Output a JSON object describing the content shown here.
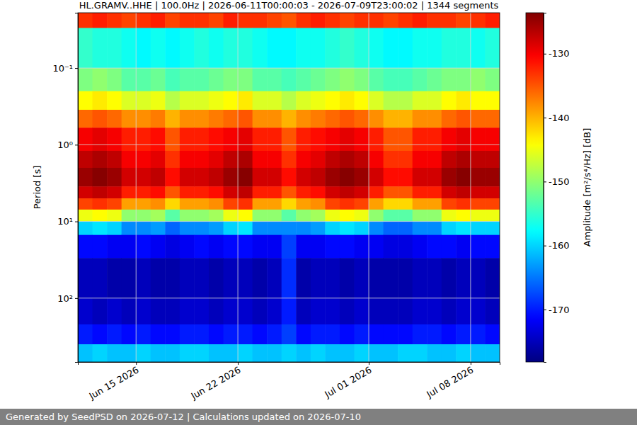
{
  "chart_data": {
    "type": "heatmap",
    "title": "HL.GRAMV..HHE | 100.0Hz | 2026-06-11T00:00:03 - 2026-07-09T23:00:02 | 1344 segments",
    "y_label": "Period [s]",
    "footer": "Generated by SeedPSD on 2026-07-12 | Calculations updated on 2026-07-10",
    "log": "y",
    "grid": true,
    "xlim": [
      "2026-06-11",
      "2026-07-10"
    ],
    "xticks": [
      {
        "value": "2026-06-15",
        "label": "Jun 15 2026"
      },
      {
        "value": "2026-06-22",
        "label": "Jun 22 2026"
      },
      {
        "value": "2026-07-01",
        "label": "Jul 01 2026"
      },
      {
        "value": "2026-07-08",
        "label": "Jul 08 2026"
      }
    ],
    "ylim": [
      0.019,
      680
    ],
    "yticks": [
      {
        "value": 0.1,
        "label": "10⁻¹"
      },
      {
        "value": 1,
        "label": "10⁰"
      },
      {
        "value": 10,
        "label": "10¹"
      },
      {
        "value": 100,
        "label": "10²"
      }
    ],
    "x": [
      "2026-06-11",
      "2026-06-12",
      "2026-06-13",
      "2026-06-14",
      "2026-06-15",
      "2026-06-16",
      "2026-06-17",
      "2026-06-18",
      "2026-06-19",
      "2026-06-20",
      "2026-06-21",
      "2026-06-22",
      "2026-06-23",
      "2026-06-24",
      "2026-06-25",
      "2026-06-26",
      "2026-06-27",
      "2026-06-28",
      "2026-06-29",
      "2026-06-30",
      "2026-07-01",
      "2026-07-02",
      "2026-07-03",
      "2026-07-04",
      "2026-07-05",
      "2026-07-06",
      "2026-07-07",
      "2026-07-08",
      "2026-07-09",
      "2026-07-10"
    ],
    "y": [
      0.019,
      0.03,
      0.1,
      0.2,
      0.35,
      0.6,
      1.2,
      2,
      3.5,
      5,
      7,
      10,
      15,
      30,
      100,
      220,
      400,
      680
    ],
    "z": [
      [
        -133,
        -132,
        -133,
        -134,
        -133,
        -132,
        -134,
        -133,
        -133,
        -134,
        -132,
        -133,
        -133,
        -134,
        -135,
        -133,
        -132,
        -133,
        -134,
        -133,
        -133,
        -134,
        -133,
        -132,
        -133,
        -133,
        -134,
        -133,
        -132
      ],
      [
        -155,
        -156,
        -156,
        -157,
        -158,
        -157,
        -158,
        -157,
        -156,
        -157,
        -156,
        -156,
        -157,
        -158,
        -158,
        -157,
        -157,
        -156,
        -155,
        -156,
        -157,
        -158,
        -158,
        -157,
        -157,
        -156,
        -156,
        -157,
        -156
      ],
      [
        -151,
        -150,
        -151,
        -153,
        -153,
        -152,
        -154,
        -153,
        -153,
        -152,
        -151,
        -151,
        -153,
        -153,
        -154,
        -153,
        -152,
        -151,
        -150,
        -151,
        -153,
        -154,
        -154,
        -153,
        -152,
        -151,
        -151,
        -150,
        -151
      ],
      [
        -144,
        -143,
        -144,
        -146,
        -146,
        -145,
        -148,
        -146,
        -146,
        -145,
        -144,
        -143,
        -146,
        -146,
        -148,
        -146,
        -145,
        -144,
        -143,
        -144,
        -146,
        -148,
        -148,
        -146,
        -146,
        -144,
        -143,
        -144,
        -144
      ],
      [
        -136,
        -135,
        -136,
        -138,
        -138,
        -137,
        -140,
        -138,
        -138,
        -137,
        -136,
        -135,
        -138,
        -138,
        -140,
        -138,
        -137,
        -136,
        -135,
        -136,
        -138,
        -140,
        -140,
        -138,
        -138,
        -136,
        -135,
        -136,
        -136
      ],
      [
        -130,
        -129,
        -130,
        -132,
        -132,
        -131,
        -135,
        -132,
        -132,
        -131,
        -130,
        -129,
        -132,
        -132,
        -135,
        -132,
        -131,
        -130,
        -129,
        -130,
        -132,
        -135,
        -135,
        -132,
        -132,
        -130,
        -129,
        -130,
        -130
      ],
      [
        -127,
        -126,
        -127,
        -130,
        -130,
        -129,
        -133,
        -130,
        -130,
        -129,
        -127,
        -126,
        -130,
        -130,
        -133,
        -130,
        -129,
        -127,
        -126,
        -127,
        -130,
        -133,
        -133,
        -130,
        -130,
        -127,
        -126,
        -127,
        -127
      ],
      [
        -125,
        -124,
        -125,
        -128,
        -128,
        -127,
        -131,
        -128,
        -128,
        -127,
        -125,
        -124,
        -128,
        -128,
        -131,
        -128,
        -127,
        -125,
        -124,
        -125,
        -128,
        -131,
        -131,
        -128,
        -128,
        -125,
        -124,
        -125,
        -125
      ],
      [
        -128,
        -127,
        -128,
        -132,
        -132,
        -131,
        -135,
        -132,
        -132,
        -131,
        -128,
        -127,
        -132,
        -132,
        -135,
        -132,
        -131,
        -128,
        -127,
        -128,
        -132,
        -135,
        -135,
        -132,
        -132,
        -128,
        -127,
        -128,
        -128
      ],
      [
        -134,
        -133,
        -134,
        -139,
        -139,
        -138,
        -142,
        -139,
        -139,
        -138,
        -134,
        -133,
        -139,
        -139,
        -142,
        -139,
        -138,
        -134,
        -133,
        -134,
        -139,
        -142,
        -142,
        -139,
        -139,
        -134,
        -133,
        -134,
        -134
      ],
      [
        -145,
        -144,
        -145,
        -150,
        -150,
        -149,
        -153,
        -150,
        -150,
        -149,
        -145,
        -144,
        -150,
        -150,
        -153,
        -150,
        -149,
        -145,
        -144,
        -145,
        -150,
        -153,
        -153,
        -150,
        -150,
        -145,
        -144,
        -145,
        -145
      ],
      [
        -160,
        -159,
        -160,
        -164,
        -164,
        -163,
        -166,
        -164,
        -164,
        -163,
        -160,
        -159,
        -164,
        -164,
        -164,
        -164,
        -163,
        -160,
        -159,
        -160,
        -164,
        -166,
        -166,
        -164,
        -164,
        -160,
        -159,
        -160,
        -160
      ],
      [
        -171,
        -171,
        -172,
        -172,
        -171,
        -172,
        -173,
        -172,
        -171,
        -172,
        -171,
        -171,
        -172,
        -172,
        -168,
        -172,
        -172,
        -171,
        -171,
        -172,
        -172,
        -173,
        -173,
        -172,
        -171,
        -171,
        -172,
        -171,
        -171
      ],
      [
        -175,
        -175,
        -176,
        -176,
        -175,
        -176,
        -176,
        -175,
        -175,
        -176,
        -175,
        -175,
        -176,
        -175,
        -169,
        -176,
        -175,
        -175,
        -176,
        -175,
        -176,
        -176,
        -176,
        -175,
        -175,
        -176,
        -175,
        -175,
        -176
      ],
      [
        -174,
        -175,
        -174,
        -175,
        -174,
        -175,
        -175,
        -174,
        -174,
        -175,
        -174,
        -174,
        -175,
        -174,
        -170,
        -175,
        -174,
        -174,
        -175,
        -174,
        -175,
        -175,
        -175,
        -174,
        -174,
        -175,
        -174,
        -174,
        -175
      ],
      [
        -170,
        -171,
        -170,
        -171,
        -170,
        -171,
        -171,
        -170,
        -170,
        -171,
        -170,
        -170,
        -171,
        -170,
        -168,
        -171,
        -170,
        -170,
        -171,
        -170,
        -171,
        -171,
        -171,
        -170,
        -170,
        -171,
        -170,
        -170,
        -171
      ],
      [
        -161,
        -160,
        -161,
        -161,
        -160,
        -161,
        -161,
        -160,
        -160,
        -161,
        -161,
        -160,
        -161,
        -161,
        -160,
        -161,
        -160,
        -161,
        -161,
        -160,
        -161,
        -161,
        -160,
        -160,
        -161,
        -161,
        -160,
        -161,
        -161
      ]
    ],
    "colorbar": {
      "label": "Amplitude [m²/s⁴/Hz] [dB]",
      "color": "jet",
      "lim": [
        -178.2,
        -123.6
      ],
      "ticks": [
        -170,
        -160,
        -150,
        -140,
        -130
      ]
    }
  }
}
